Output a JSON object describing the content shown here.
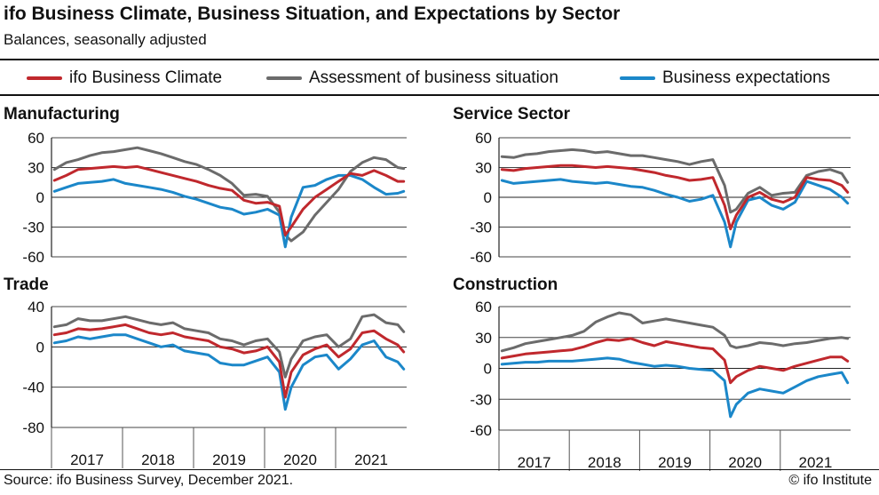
{
  "header": {
    "title": "ifo Business Climate, Business Situation, and Expectations by Sector",
    "subtitle": "Balances, seasonally adjusted"
  },
  "legend": [
    {
      "label": "ifo Business Climate",
      "color": "#c0282d"
    },
    {
      "label": "Assessment of business situation",
      "color": "#6b6b6b"
    },
    {
      "label": "Business expectations",
      "color": "#1b87c9"
    }
  ],
  "footer": {
    "source": "Source: ifo Business Survey, December 2021.",
    "copyright": "© ifo Institute"
  },
  "chart_data": [
    {
      "type": "line",
      "title": "Manufacturing",
      "ylim": [
        -60,
        60
      ],
      "yticks": [
        "60",
        "30",
        "0",
        "-30",
        "-60"
      ],
      "x_labels": [
        "2017",
        "2018",
        "2019",
        "2020",
        "2021"
      ],
      "x": [
        "2017-01",
        "2017-03",
        "2017-05",
        "2017-07",
        "2017-09",
        "2017-11",
        "2018-01",
        "2018-03",
        "2018-05",
        "2018-07",
        "2018-09",
        "2018-11",
        "2019-01",
        "2019-03",
        "2019-05",
        "2019-07",
        "2019-09",
        "2019-11",
        "2020-01",
        "2020-03",
        "2020-04",
        "2020-05",
        "2020-07",
        "2020-09",
        "2020-11",
        "2021-01",
        "2021-03",
        "2021-05",
        "2021-07",
        "2021-09",
        "2021-11",
        "2021-12"
      ],
      "series": [
        {
          "name": "ifo Business Climate",
          "color": "#c0282d",
          "values": [
            17,
            22,
            28,
            29,
            30,
            31,
            30,
            31,
            28,
            25,
            22,
            19,
            16,
            12,
            9,
            7,
            -3,
            -6,
            -5,
            -9,
            -38,
            -30,
            -12,
            0,
            8,
            16,
            24,
            22,
            27,
            22,
            16,
            16
          ]
        },
        {
          "name": "Assessment of business situation",
          "color": "#6b6b6b",
          "values": [
            28,
            35,
            38,
            42,
            45,
            46,
            48,
            50,
            47,
            44,
            40,
            36,
            33,
            28,
            22,
            14,
            2,
            3,
            1,
            -15,
            -38,
            -44,
            -35,
            -18,
            -5,
            8,
            26,
            35,
            40,
            38,
            30,
            29
          ]
        },
        {
          "name": "Business expectations",
          "color": "#1b87c9",
          "values": [
            6,
            10,
            14,
            15,
            16,
            18,
            14,
            12,
            10,
            8,
            5,
            1,
            -2,
            -6,
            -10,
            -12,
            -17,
            -15,
            -12,
            -18,
            -50,
            -20,
            10,
            12,
            18,
            22,
            22,
            18,
            10,
            3,
            4,
            6
          ]
        }
      ]
    },
    {
      "type": "line",
      "title": "Service Sector",
      "ylim": [
        -60,
        60
      ],
      "yticks": [
        "60",
        "30",
        "0",
        "-30",
        "-60"
      ],
      "x_labels": [
        "2017",
        "2018",
        "2019",
        "2020",
        "2021"
      ],
      "x": [
        "2017-01",
        "2017-03",
        "2017-05",
        "2017-07",
        "2017-09",
        "2017-11",
        "2018-01",
        "2018-03",
        "2018-05",
        "2018-07",
        "2018-09",
        "2018-11",
        "2019-01",
        "2019-03",
        "2019-05",
        "2019-07",
        "2019-09",
        "2019-11",
        "2020-01",
        "2020-03",
        "2020-04",
        "2020-05",
        "2020-07",
        "2020-09",
        "2020-11",
        "2021-01",
        "2021-03",
        "2021-05",
        "2021-07",
        "2021-09",
        "2021-11",
        "2021-12"
      ],
      "series": [
        {
          "name": "ifo Business Climate",
          "color": "#c0282d",
          "values": [
            28,
            27,
            29,
            30,
            31,
            32,
            32,
            31,
            30,
            31,
            30,
            29,
            27,
            25,
            22,
            20,
            17,
            18,
            20,
            -8,
            -32,
            -18,
            0,
            5,
            -2,
            -5,
            0,
            20,
            18,
            17,
            12,
            5
          ]
        },
        {
          "name": "Assessment of business situation",
          "color": "#6b6b6b",
          "values": [
            41,
            40,
            43,
            44,
            46,
            47,
            48,
            47,
            45,
            46,
            44,
            42,
            42,
            40,
            38,
            36,
            33,
            36,
            38,
            12,
            -15,
            -12,
            4,
            10,
            2,
            4,
            5,
            22,
            26,
            28,
            24,
            15
          ]
        },
        {
          "name": "Business expectations",
          "color": "#1b87c9",
          "values": [
            17,
            14,
            15,
            16,
            17,
            18,
            16,
            15,
            14,
            15,
            13,
            11,
            10,
            7,
            3,
            0,
            -4,
            -2,
            2,
            -25,
            -50,
            -25,
            -3,
            0,
            -8,
            -12,
            -5,
            16,
            12,
            8,
            0,
            -6
          ]
        }
      ]
    },
    {
      "type": "line",
      "title": "Trade",
      "ylim": [
        -80,
        40
      ],
      "yticks": [
        "40",
        "0",
        "-40",
        "-80"
      ],
      "x_labels": [
        "2017",
        "2018",
        "2019",
        "2020",
        "2021"
      ],
      "x": [
        "2017-01",
        "2017-03",
        "2017-05",
        "2017-07",
        "2017-09",
        "2017-11",
        "2018-01",
        "2018-03",
        "2018-05",
        "2018-07",
        "2018-09",
        "2018-11",
        "2019-01",
        "2019-03",
        "2019-05",
        "2019-07",
        "2019-09",
        "2019-11",
        "2020-01",
        "2020-03",
        "2020-04",
        "2020-05",
        "2020-07",
        "2020-09",
        "2020-11",
        "2021-01",
        "2021-03",
        "2021-05",
        "2021-07",
        "2021-09",
        "2021-11",
        "2021-12"
      ],
      "series": [
        {
          "name": "ifo Business Climate",
          "color": "#c0282d",
          "values": [
            12,
            14,
            18,
            17,
            18,
            20,
            22,
            18,
            14,
            12,
            14,
            10,
            8,
            6,
            0,
            -2,
            -6,
            -4,
            0,
            -15,
            -50,
            -25,
            -8,
            -2,
            2,
            -10,
            -2,
            14,
            16,
            8,
            2,
            -5
          ]
        },
        {
          "name": "Assessment of business situation",
          "color": "#6b6b6b",
          "values": [
            20,
            22,
            28,
            26,
            26,
            28,
            30,
            27,
            24,
            22,
            24,
            18,
            16,
            14,
            8,
            6,
            2,
            6,
            8,
            -5,
            -30,
            -12,
            6,
            10,
            12,
            0,
            8,
            30,
            32,
            24,
            22,
            15
          ]
        },
        {
          "name": "Business expectations",
          "color": "#1b87c9",
          "values": [
            4,
            6,
            10,
            8,
            10,
            12,
            12,
            8,
            4,
            0,
            2,
            -4,
            -6,
            -8,
            -16,
            -18,
            -18,
            -14,
            -10,
            -25,
            -62,
            -40,
            -18,
            -10,
            -8,
            -22,
            -12,
            2,
            6,
            -10,
            -15,
            -22
          ]
        }
      ]
    },
    {
      "type": "line",
      "title": "Construction",
      "ylim": [
        -60,
        60
      ],
      "yticks": [
        "60",
        "30",
        "0",
        "-30",
        "-60"
      ],
      "x_labels": [
        "2017",
        "2018",
        "2019",
        "2020",
        "2021"
      ],
      "x": [
        "2017-01",
        "2017-03",
        "2017-05",
        "2017-07",
        "2017-09",
        "2017-11",
        "2018-01",
        "2018-03",
        "2018-05",
        "2018-07",
        "2018-09",
        "2018-11",
        "2019-01",
        "2019-03",
        "2019-05",
        "2019-07",
        "2019-09",
        "2019-11",
        "2020-01",
        "2020-03",
        "2020-04",
        "2020-05",
        "2020-07",
        "2020-09",
        "2020-11",
        "2021-01",
        "2021-03",
        "2021-05",
        "2021-07",
        "2021-09",
        "2021-11",
        "2021-12"
      ],
      "series": [
        {
          "name": "ifo Business Climate",
          "color": "#c0282d",
          "values": [
            10,
            12,
            14,
            15,
            16,
            17,
            18,
            21,
            25,
            28,
            27,
            29,
            25,
            22,
            26,
            24,
            22,
            20,
            19,
            8,
            -14,
            -8,
            -2,
            2,
            0,
            -2,
            2,
            5,
            8,
            11,
            11,
            7
          ]
        },
        {
          "name": "Assessment of business situation",
          "color": "#6b6b6b",
          "values": [
            17,
            20,
            24,
            26,
            28,
            30,
            32,
            36,
            45,
            50,
            54,
            52,
            44,
            46,
            48,
            46,
            44,
            42,
            40,
            32,
            22,
            20,
            22,
            25,
            24,
            22,
            24,
            25,
            27,
            29,
            30,
            29
          ]
        },
        {
          "name": "Business expectations",
          "color": "#1b87c9",
          "values": [
            4,
            5,
            6,
            6,
            7,
            7,
            7,
            8,
            9,
            10,
            9,
            6,
            4,
            2,
            3,
            2,
            0,
            -1,
            -2,
            -12,
            -47,
            -35,
            -24,
            -20,
            -22,
            -24,
            -18,
            -12,
            -8,
            -6,
            -4,
            -14
          ]
        }
      ]
    }
  ]
}
